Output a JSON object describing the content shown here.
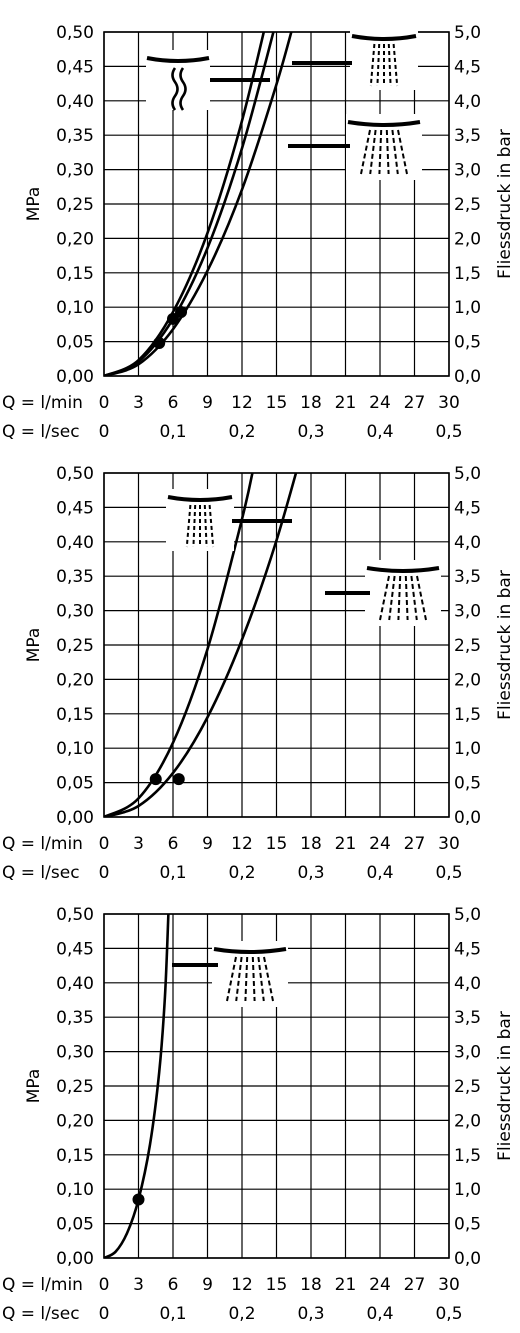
{
  "chart_data": [
    {
      "type": "line",
      "ylabel_left": "MPa",
      "ylabel_right": "Fliessdruck in bar",
      "x_label_lmin": "Q = l/min",
      "x_label_lsec": "Q = l/sec",
      "x_ticks_lmin": [
        "0",
        "3",
        "6",
        "9",
        "12",
        "15",
        "18",
        "21",
        "24",
        "27",
        "30"
      ],
      "x_ticks_lsec": [
        "0",
        "0,1",
        "0,2",
        "0,3",
        "0,4",
        "0,5"
      ],
      "y_ticks_left": [
        "0,00",
        "0,05",
        "0,10",
        "0,15",
        "0,20",
        "0,25",
        "0,30",
        "0,35",
        "0,40",
        "0,45",
        "0,50"
      ],
      "y_ticks_right": [
        "0,0",
        "0,5",
        "1,0",
        "1,5",
        "2,0",
        "2,5",
        "3,0",
        "3,5",
        "4,0",
        "4,5",
        "5,0"
      ],
      "xlim": [
        0,
        30
      ],
      "ylim": [
        0,
        0.5
      ],
      "grid": true,
      "series": [
        {
          "icon": "wavy-jet-icon",
          "points": [
            [
              0,
              0
            ],
            [
              3,
              0.021
            ],
            [
              6,
              0.083
            ],
            [
              9,
              0.186
            ],
            [
              12,
              0.331
            ],
            [
              15,
              0.517
            ]
          ],
          "marker": [
            6,
            0.083
          ]
        },
        {
          "icon": "narrow-spray-icon",
          "points": [
            [
              0,
              0
            ],
            [
              3,
              0.023
            ],
            [
              6,
              0.093
            ],
            [
              9,
              0.208
            ],
            [
              12,
              0.371
            ],
            [
              15,
              0.579
            ]
          ],
          "marker": [
            6.7,
            0.093
          ]
        },
        {
          "icon": "wide-spray-icon",
          "points": [
            [
              0,
              0
            ],
            [
              3,
              0.017
            ],
            [
              6,
              0.068
            ],
            [
              9,
              0.153
            ],
            [
              12,
              0.271
            ],
            [
              15,
              0.424
            ],
            [
              16.8,
              0.532
            ]
          ],
          "marker": [
            4.8,
            0.048
          ]
        }
      ]
    },
    {
      "type": "line",
      "ylabel_left": "MPa",
      "ylabel_right": "Fliessdruck in bar",
      "x_label_lmin": "Q = l/min",
      "x_label_lsec": "Q = l/sec",
      "x_ticks_lmin": [
        "0",
        "3",
        "6",
        "9",
        "12",
        "15",
        "18",
        "21",
        "24",
        "27",
        "30"
      ],
      "x_ticks_lsec": [
        "0",
        "0,1",
        "0,2",
        "0,3",
        "0,4",
        "0,5"
      ],
      "y_ticks_left": [
        "0,00",
        "0,05",
        "0,10",
        "0,15",
        "0,20",
        "0,25",
        "0,30",
        "0,35",
        "0,40",
        "0,45",
        "0,50"
      ],
      "y_ticks_right": [
        "0,0",
        "0,5",
        "1,0",
        "1,5",
        "2,0",
        "2,5",
        "3,0",
        "3,5",
        "4,0",
        "4,5",
        "5,0"
      ],
      "xlim": [
        0,
        30
      ],
      "ylim": [
        0,
        0.5
      ],
      "grid": true,
      "series": [
        {
          "icon": "narrow-spray-icon",
          "points": [
            [
              0,
              0
            ],
            [
              3,
              0.027
            ],
            [
              6,
              0.108
            ],
            [
              9,
              0.244
            ],
            [
              12,
              0.433
            ],
            [
              13.1,
              0.516
            ]
          ],
          "marker": [
            4.5,
            0.055
          ]
        },
        {
          "icon": "wide-spray-icon",
          "points": [
            [
              0,
              0
            ],
            [
              3,
              0.016
            ],
            [
              6,
              0.064
            ],
            [
              9,
              0.145
            ],
            [
              12,
              0.258
            ],
            [
              15,
              0.402
            ],
            [
              18,
              0.579
            ]
          ],
          "marker": [
            6.5,
            0.055
          ]
        }
      ]
    },
    {
      "type": "line",
      "ylabel_left": "MPa",
      "ylabel_right": "Fliessdruck in bar",
      "x_label_lmin": "Q = l/min",
      "x_label_lsec": "Q = l/sec",
      "x_ticks_lmin": [
        "0",
        "3",
        "6",
        "9",
        "12",
        "15",
        "18",
        "21",
        "24",
        "27",
        "30"
      ],
      "x_ticks_lsec": [
        "0",
        "0,1",
        "0,2",
        "0,3",
        "0,4",
        "0,5"
      ],
      "y_ticks_left": [
        "0,00",
        "0,05",
        "0,10",
        "0,15",
        "0,20",
        "0,25",
        "0,30",
        "0,35",
        "0,40",
        "0,45",
        "0,50"
      ],
      "y_ticks_right": [
        "0,0",
        "0,5",
        "1,0",
        "1,5",
        "2,0",
        "2,5",
        "3,0",
        "3,5",
        "4,0",
        "4,5",
        "5,0"
      ],
      "xlim": [
        0,
        30
      ],
      "ylim": [
        0,
        0.5
      ],
      "grid": true,
      "series": [
        {
          "icon": "wide-spray-icon",
          "points": [
            [
              0,
              0
            ],
            [
              1,
              0.009
            ],
            [
              2,
              0.036
            ],
            [
              3,
              0.085
            ],
            [
              4,
              0.165
            ],
            [
              4.8,
              0.27
            ],
            [
              5.3,
              0.38
            ],
            [
              5.6,
              0.5
            ],
            [
              5.65,
              0.52
            ]
          ],
          "marker": [
            3,
            0.085
          ]
        }
      ]
    }
  ]
}
